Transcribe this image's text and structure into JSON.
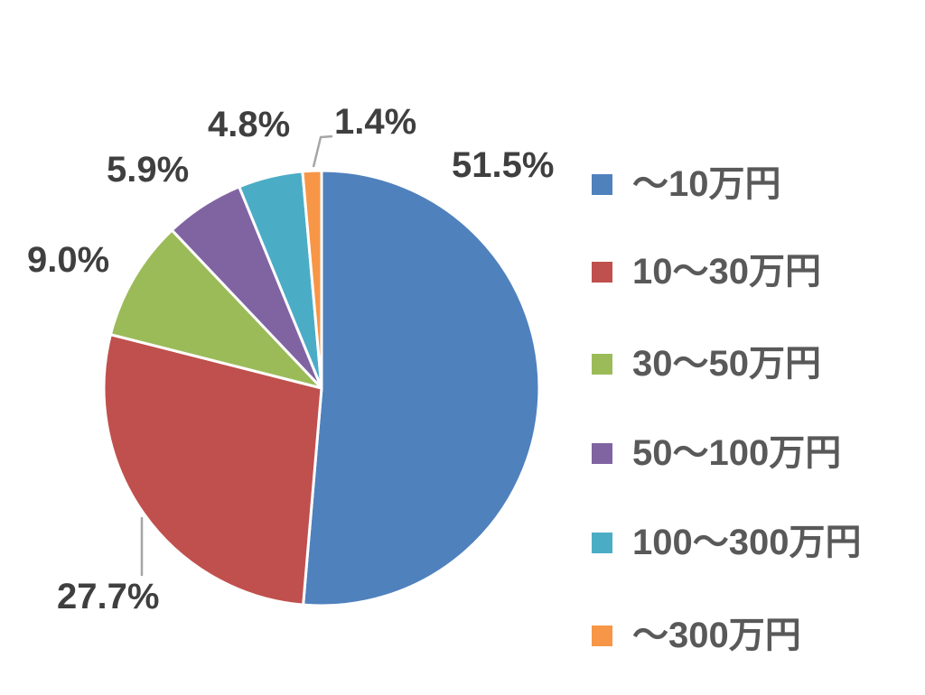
{
  "chart_data": {
    "type": "pie",
    "title": "",
    "unit": "%",
    "start_angle_deg": 0,
    "direction": "clockwise",
    "legend_position": "right",
    "background": "#FFFFFF",
    "slice_border_color": "#FFFFFF",
    "data_label_color": "#3F3F3F",
    "legend_text_color": "#595959",
    "leader_line_color": "#A6A6A6",
    "categories": [
      "～10万円",
      "10～30万円",
      "30～50万円",
      "50～100万円",
      "100～300万円",
      "～300万円"
    ],
    "values": [
      51.5,
      27.7,
      9.0,
      5.9,
      4.8,
      1.4
    ],
    "slices": [
      {
        "name": "～10万円",
        "value": 51.5,
        "label": "51.5%",
        "color": "#4F81BD"
      },
      {
        "name": "10～30万円",
        "value": 27.7,
        "label": "27.7%",
        "color": "#C0504D"
      },
      {
        "name": "30～50万円",
        "value": 9.0,
        "label": "9.0%",
        "color": "#9BBB59"
      },
      {
        "name": "50～100万円",
        "value": 5.9,
        "label": "5.9%",
        "color": "#8064A2"
      },
      {
        "name": "100～300万円",
        "value": 4.8,
        "label": "4.8%",
        "color": "#4BACC6"
      },
      {
        "name": "～300万円",
        "value": 1.4,
        "label": "1.4%",
        "color": "#F79646"
      }
    ]
  }
}
